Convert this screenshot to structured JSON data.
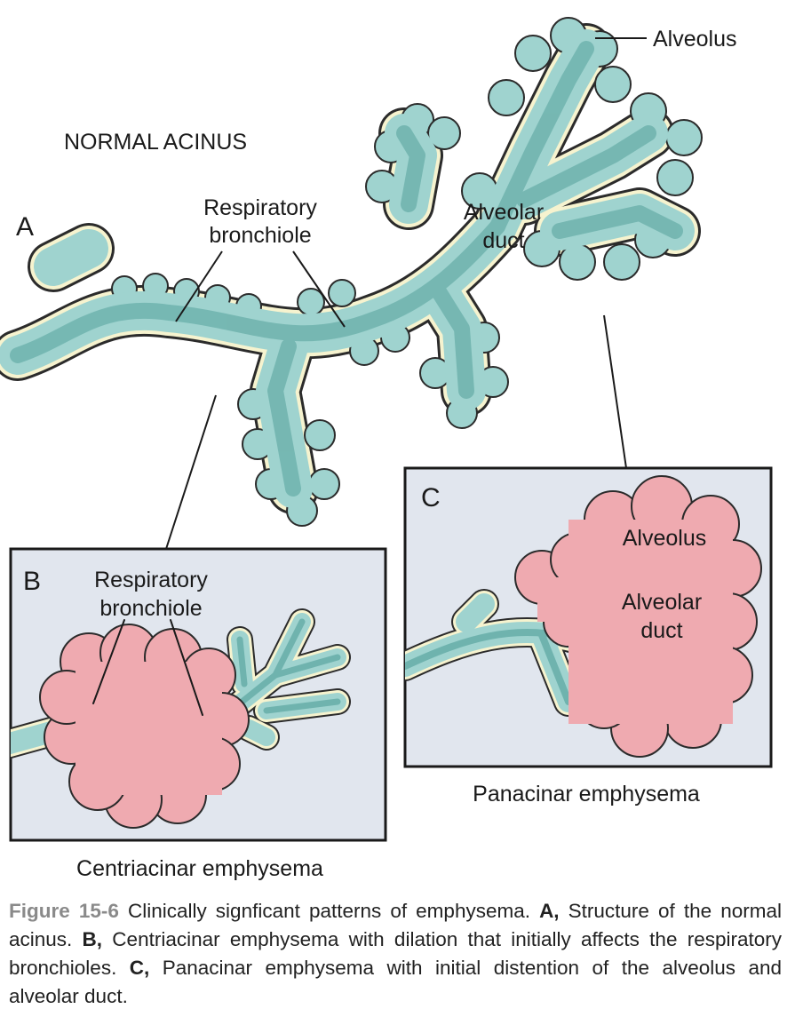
{
  "panel_a": {
    "letter": "A",
    "title": "NORMAL ACINUS",
    "label_resp_1": "Respiratory",
    "label_resp_2": "bronchiole",
    "label_duct_1": "Alveolar",
    "label_duct_2": "duct",
    "label_alveolus": "Alveolus"
  },
  "panel_b": {
    "letter": "B",
    "label_resp_1": "Respiratory",
    "label_resp_2": "bronchiole",
    "subtitle": "Centriacinar emphysema"
  },
  "panel_c": {
    "letter": "C",
    "label_alveolus": "Alveolus",
    "label_duct_1": "Alveolar",
    "label_duct_2": "duct",
    "subtitle": "Panacinar emphysema"
  },
  "caption": {
    "fig_num": "Figure 15-6",
    "text_1": " Clinically signficant patterns of emphysema. ",
    "a_marker": "A,",
    "text_a": " Structure of the normal acinus. ",
    "b_marker": "B,",
    "text_b": " Centriacinar emphysema with dilation that initially affects the respiratory bronchioles. ",
    "c_marker": "C,",
    "text_c": " Panacinar emphysema with initial distention of the alveolus and alveolar duct."
  },
  "colors": {
    "airway_fill": "#9fd3cf",
    "airway_core": "#6fb3ae",
    "airway_rim": "#f6f3cf",
    "emphysema_fill": "#efaab0",
    "panel_bg": "#e1e6ee",
    "outline": "#2b2b2b"
  }
}
